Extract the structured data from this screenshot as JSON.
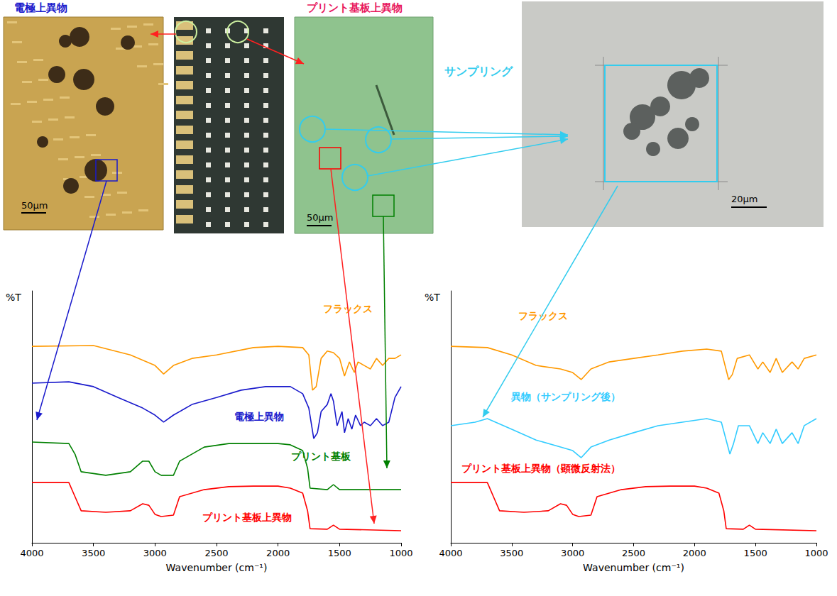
{
  "photos": {
    "electrode_label": "電極上異物",
    "board_label": "プリント基板上異物",
    "sampling_label": "サンプリング",
    "scale_bars": [
      "50μm",
      "50μm",
      "20μm"
    ]
  },
  "chart_data": [
    {
      "type": "line",
      "y_label": "%T",
      "x_label": "Wavenumber (cm⁻¹)",
      "xlim": [
        4000,
        1000
      ],
      "xticks": [
        4000,
        3500,
        3000,
        2500,
        2000,
        1500,
        1000
      ],
      "ylim": [
        0,
        100
      ],
      "tick_labels": "x",
      "grid": false,
      "series": [
        {
          "name": "フラックス",
          "color": "#ff9900",
          "x": [
            4000,
            3500,
            3200,
            3000,
            2930,
            2850,
            2700,
            2500,
            2200,
            2000,
            1800,
            1750,
            1720,
            1690,
            1650,
            1600,
            1550,
            1500,
            1460,
            1420,
            1380,
            1350,
            1300,
            1250,
            1200,
            1150,
            1100,
            1050,
            1000
          ],
          "values": [
            78.0,
            78.3,
            74.6,
            70.4,
            67.0,
            70.4,
            73.2,
            74.6,
            77.5,
            78.0,
            77.5,
            74.6,
            60.6,
            62.0,
            73.2,
            76.1,
            75.5,
            73.2,
            66.2,
            71.8,
            67.6,
            71.8,
            70.4,
            69.0,
            73.2,
            70.4,
            73.2,
            73.2,
            74.6
          ]
        },
        {
          "name": "電極上異物",
          "color": "#1a1acc",
          "x": [
            4000,
            3700,
            3500,
            3300,
            3100,
            3000,
            2930,
            2850,
            2700,
            2500,
            2300,
            2100,
            1900,
            1800,
            1750,
            1710,
            1680,
            1650,
            1600,
            1570,
            1550,
            1520,
            1480,
            1460,
            1430,
            1400,
            1370,
            1330,
            1300,
            1250,
            1200,
            1150,
            1100,
            1050,
            1000
          ],
          "values": [
            63.4,
            63.9,
            62.0,
            57.7,
            53.5,
            50.7,
            47.9,
            50.7,
            54.9,
            57.7,
            60.6,
            62.0,
            62.0,
            59.2,
            53.5,
            41.4,
            43.7,
            52.1,
            54.9,
            59.2,
            56.3,
            46.5,
            52.1,
            43.7,
            49.3,
            45.1,
            50.7,
            46.5,
            47.9,
            46.5,
            49.3,
            46.5,
            47.9,
            57.7,
            62.0
          ]
        },
        {
          "name": "プリント基板",
          "color": "#008000",
          "x": [
            4000,
            3700,
            3650,
            3600,
            3400,
            3200,
            3100,
            3050,
            3000,
            2950,
            2850,
            2800,
            2600,
            2400,
            2200,
            2000,
            1900,
            1800,
            1760,
            1740,
            1600,
            1550,
            1500,
            1000
          ],
          "values": [
            40.0,
            39.4,
            35.2,
            28.2,
            26.8,
            28.2,
            32.4,
            32.4,
            28.2,
            26.8,
            26.8,
            32.4,
            38.0,
            39.4,
            39.4,
            39.4,
            38.9,
            36.6,
            29.6,
            21.7,
            21.1,
            23.1,
            21.1,
            21.1
          ]
        },
        {
          "name": "プリント基板上異物",
          "color": "#ff0000",
          "x": [
            4000,
            3700,
            3650,
            3600,
            3400,
            3200,
            3100,
            3050,
            3000,
            2950,
            2850,
            2800,
            2600,
            2400,
            2200,
            2000,
            1900,
            1800,
            1760,
            1740,
            1600,
            1550,
            1500,
            1000
          ],
          "values": [
            23.9,
            23.9,
            18.3,
            12.7,
            12.1,
            12.7,
            15.5,
            14.9,
            11.3,
            10.4,
            11.0,
            18.3,
            21.1,
            22.3,
            22.5,
            22.5,
            21.7,
            19.7,
            12.7,
            5.6,
            5.4,
            7.0,
            5.4,
            4.8
          ]
        }
      ]
    },
    {
      "type": "line",
      "y_label": "%T",
      "x_label": "Wavenumber (cm⁻¹)",
      "xlim": [
        4000,
        1000
      ],
      "xticks": [
        4000,
        3500,
        3000,
        2500,
        2000,
        1500,
        1000
      ],
      "ylim": [
        0,
        100
      ],
      "tick_labels": "x",
      "grid": false,
      "series": [
        {
          "name": "フラックス",
          "color": "#ff9900",
          "x": [
            4000,
            3700,
            3500,
            3300,
            3100,
            3000,
            2930,
            2850,
            2700,
            2500,
            2300,
            2100,
            1900,
            1780,
            1720,
            1690,
            1650,
            1550,
            1480,
            1440,
            1380,
            1330,
            1280,
            1200,
            1150,
            1100,
            1000
          ],
          "values": [
            78.0,
            77.5,
            74.6,
            70.4,
            69.0,
            67.6,
            64.8,
            69.0,
            71.8,
            73.2,
            74.6,
            76.1,
            76.9,
            76.1,
            64.8,
            66.8,
            73.2,
            74.6,
            69.0,
            71.8,
            67.6,
            73.2,
            67.6,
            71.8,
            69.0,
            73.2,
            74.6
          ]
        },
        {
          "name": "異物（サンプリング後）",
          "color": "#33ccff",
          "x": [
            4000,
            3800,
            3700,
            3500,
            3300,
            3100,
            3000,
            2930,
            2850,
            2700,
            2500,
            2300,
            2100,
            1900,
            1780,
            1710,
            1680,
            1640,
            1550,
            1480,
            1440,
            1380,
            1330,
            1280,
            1200,
            1150,
            1100,
            1000
          ],
          "values": [
            46.5,
            47.9,
            49.3,
            45.1,
            40.8,
            38.0,
            36.6,
            33.8,
            38.0,
            40.8,
            43.7,
            46.5,
            47.9,
            49.3,
            47.9,
            35.2,
            39.4,
            46.5,
            46.5,
            39.4,
            43.7,
            39.4,
            45.1,
            39.4,
            43.7,
            39.4,
            46.5,
            49.3
          ]
        },
        {
          "name": "プリント基板上異物（顕微反射法）",
          "color": "#ff0000",
          "x": [
            4000,
            3700,
            3650,
            3600,
            3400,
            3200,
            3100,
            3050,
            3000,
            2950,
            2850,
            2800,
            2600,
            2400,
            2200,
            2000,
            1900,
            1800,
            1760,
            1740,
            1600,
            1550,
            1500,
            1000
          ],
          "values": [
            23.9,
            23.9,
            18.3,
            12.7,
            12.1,
            12.7,
            15.5,
            14.9,
            11.3,
            10.4,
            11.0,
            18.3,
            21.1,
            22.3,
            22.5,
            22.5,
            21.7,
            19.7,
            12.7,
            5.6,
            5.4,
            7.0,
            5.4,
            4.8
          ]
        }
      ]
    }
  ]
}
